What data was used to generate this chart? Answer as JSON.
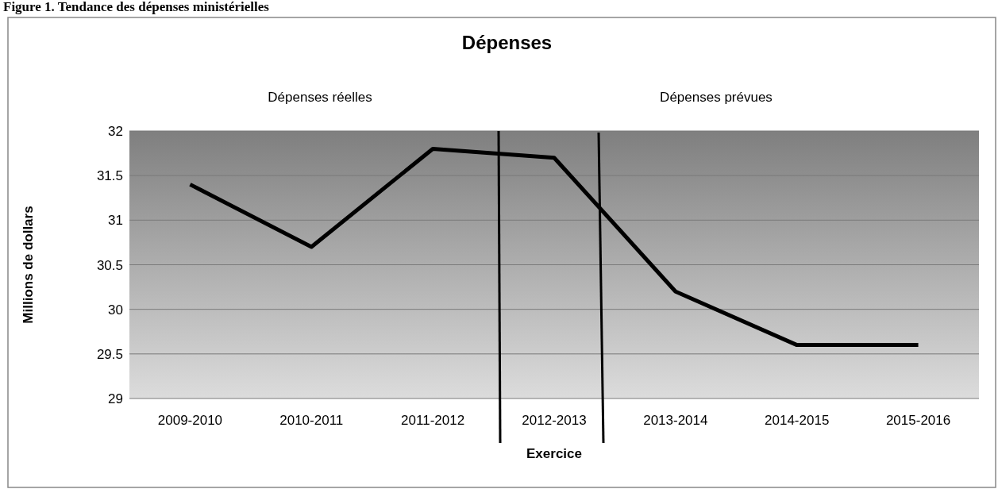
{
  "chart_data": {
    "type": "line",
    "title": "Dépenses",
    "xlabel": "Exercice",
    "ylabel": "Millions de dollars",
    "annotations": [
      "Figure 1. Tendance des dépenses ministérielles",
      "Dépenses réelles",
      "Dépenses prévues"
    ],
    "categories": [
      "2009-2010",
      "2010-2011",
      "2011-2012",
      "2012-2013",
      "2013-2014",
      "2014-2015",
      "2015-2016"
    ],
    "series": [
      {
        "color": "#000000",
        "values": [
          31.4,
          30.7,
          31.8,
          31.7,
          30.2,
          29.6,
          29.6
        ]
      }
    ],
    "ylim": [
      29,
      32
    ],
    "yticks": [
      29,
      29.5,
      30,
      30.5,
      31,
      31.5,
      32
    ],
    "grid": "y",
    "marker": "none",
    "line_style": "solid"
  }
}
